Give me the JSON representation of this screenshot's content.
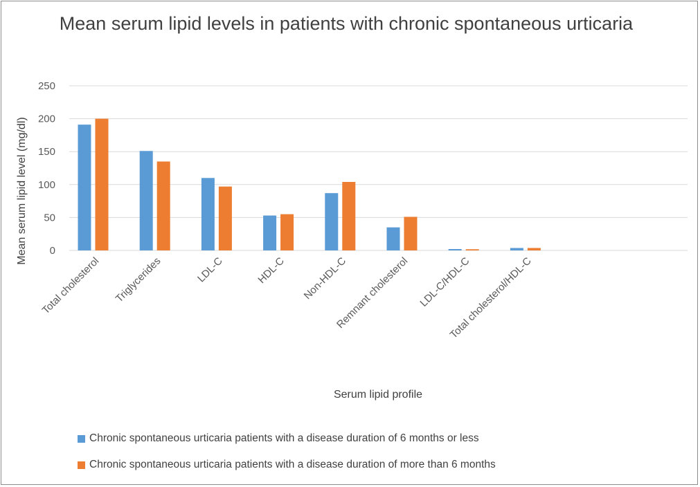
{
  "chart_data": {
    "type": "bar",
    "title": "Mean serum lipid levels in patients with chronic spontaneous urticaria",
    "xlabel": "Serum lipid profile",
    "ylabel": "Mean serum lipid level (mg/dl)",
    "ylim": [
      0,
      250
    ],
    "yticks": [
      0,
      50,
      100,
      150,
      200,
      250
    ],
    "grid": true,
    "legend_position": "bottom",
    "categories": [
      "Total cholesterol",
      "Triglycerides",
      "LDL-C",
      "HDL-C",
      "Non-HDL-C",
      "Remnant cholesterol",
      "LDL-C/HDL-C",
      "Total cholesterol/HDL-C"
    ],
    "series": [
      {
        "name": "Chronic spontaneous urticaria patients with a disease duration of 6 months or less",
        "color": "#5b9bd5",
        "values": [
          191,
          151,
          110,
          53,
          87,
          35,
          2.1,
          3.7
        ]
      },
      {
        "name": "Chronic spontaneous urticaria patients with a disease duration of more than 6 months",
        "color": "#ed7d31",
        "values": [
          200,
          135,
          97,
          55,
          104,
          51,
          1.8,
          3.7
        ]
      }
    ]
  }
}
